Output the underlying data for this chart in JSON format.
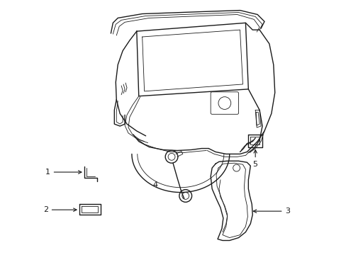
{
  "bg_color": "#ffffff",
  "line_color": "#1a1a1a",
  "lw": 1.0,
  "tlw": 0.6
}
